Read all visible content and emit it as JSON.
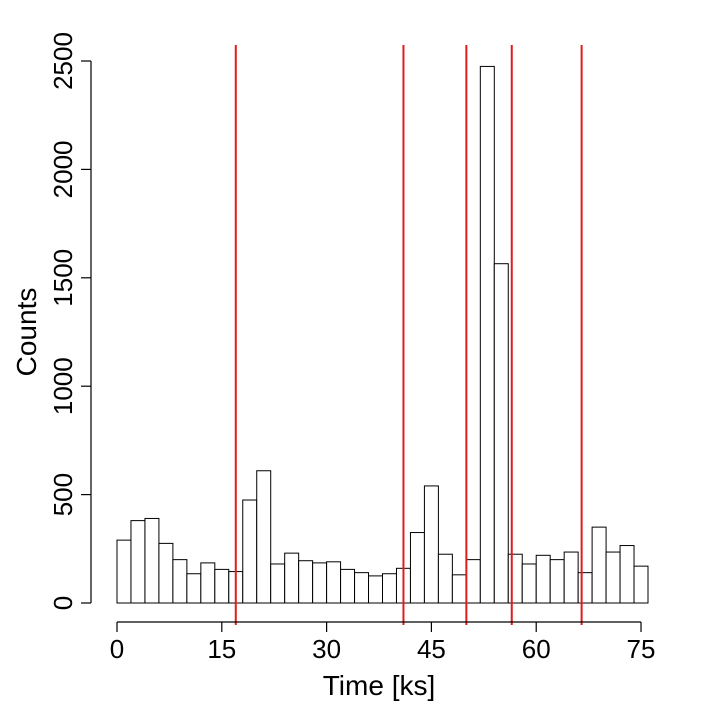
{
  "chart_data": {
    "type": "bar",
    "xlabel": "Time [ks]",
    "ylabel": "Counts",
    "xlim": [
      0,
      76
    ],
    "ylim": [
      0,
      2500
    ],
    "xticks": [
      0,
      15,
      30,
      45,
      60,
      75
    ],
    "yticks": [
      0,
      500,
      1000,
      1500,
      2000,
      2500
    ],
    "bin_width": 2,
    "bin_start": 0,
    "values": [
      290,
      380,
      390,
      275,
      200,
      135,
      185,
      155,
      145,
      475,
      610,
      180,
      230,
      195,
      185,
      190,
      155,
      140,
      125,
      135,
      160,
      325,
      540,
      225,
      130,
      200,
      2475,
      1565,
      225,
      180,
      220,
      200,
      235,
      140,
      350,
      235,
      265,
      170
    ],
    "vertical_lines": [
      17,
      41,
      50,
      56.5,
      66.5
    ],
    "vertical_line_color": "#e41a1c",
    "grid": false
  }
}
